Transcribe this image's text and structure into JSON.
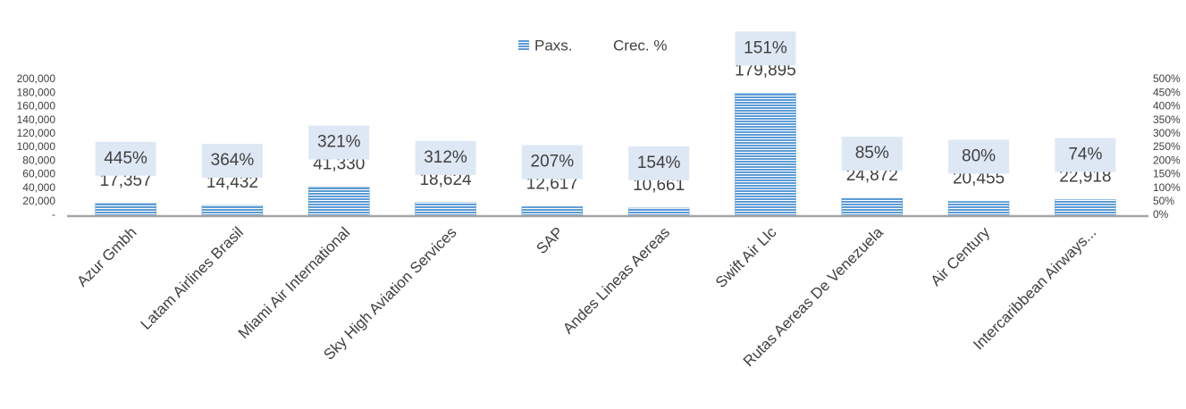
{
  "chart_data": {
    "type": "bar",
    "categories": [
      "Azur Gmbh",
      "Latam Airlines Brasil",
      "Miami Air International",
      "Sky High Aviation Services",
      "SAP",
      "Andes Lineas Aereas",
      "Swift Air Llc",
      "Rutas Aereas De Venezuela",
      "Air Century",
      "Intercaribbean Airways..."
    ],
    "series": [
      {
        "name": "Paxs.",
        "color": "#5b9bd5",
        "values": [
          17357,
          14432,
          41330,
          18624,
          12617,
          10661,
          179895,
          24872,
          20455,
          22918
        ],
        "value_labels": [
          "17,357",
          "14,432",
          "41,330",
          "18,624",
          "12,617",
          "10,661",
          "179,895",
          "24,872",
          "20,455",
          "22,918"
        ]
      },
      {
        "name": "Crec. %",
        "axis": "y2",
        "values": [
          445,
          364,
          321,
          312,
          207,
          154,
          151,
          85,
          80,
          74
        ],
        "value_labels": [
          "445%",
          "364%",
          "321%",
          "312%",
          "207%",
          "154%",
          "151%",
          "85%",
          "80%",
          "74%"
        ]
      }
    ],
    "ylim": [
      0,
      200000
    ],
    "yticks": [
      {
        "value": 0,
        "label": "-"
      },
      {
        "value": 20000,
        "label": "20,000"
      },
      {
        "value": 40000,
        "label": "40,000"
      },
      {
        "value": 60000,
        "label": "60,000"
      },
      {
        "value": 80000,
        "label": "80,000"
      },
      {
        "value": 100000,
        "label": "100,000"
      },
      {
        "value": 120000,
        "label": "120,000"
      },
      {
        "value": 140000,
        "label": "140,000"
      },
      {
        "value": 160000,
        "label": "160,000"
      },
      {
        "value": 180000,
        "label": "180,000"
      },
      {
        "value": 200000,
        "label": "200,000"
      }
    ],
    "y2lim": [
      0,
      500
    ],
    "y2ticks": [
      {
        "value": 0,
        "label": "0%"
      },
      {
        "value": 50,
        "label": "50%"
      },
      {
        "value": 100,
        "label": "100%"
      },
      {
        "value": 150,
        "label": "150%"
      },
      {
        "value": 200,
        "label": "200%"
      },
      {
        "value": 250,
        "label": "250%"
      },
      {
        "value": 300,
        "label": "300%"
      },
      {
        "value": 350,
        "label": "350%"
      },
      {
        "value": 400,
        "label": "400%"
      },
      {
        "value": 450,
        "label": "450%"
      },
      {
        "value": 500,
        "label": "500%"
      }
    ],
    "legend": "top"
  }
}
